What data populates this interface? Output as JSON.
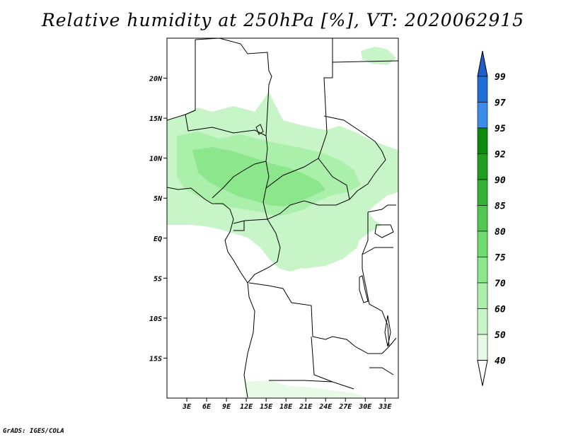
{
  "title": "Relative humidity at 250hPa [%], VT: 2020062915",
  "credit": "GrADS: IGES/COLA",
  "map": {
    "lon_range": [
      0,
      35
    ],
    "lat_range": [
      -20,
      25
    ],
    "lat_ticks": [
      {
        "value": 20,
        "label": "20N"
      },
      {
        "value": 15,
        "label": "15N"
      },
      {
        "value": 10,
        "label": "10N"
      },
      {
        "value": 5,
        "label": "5N"
      },
      {
        "value": 0,
        "label": "EQ"
      },
      {
        "value": -5,
        "label": "5S"
      },
      {
        "value": -10,
        "label": "10S"
      },
      {
        "value": -15,
        "label": "15S"
      }
    ],
    "lon_ticks": [
      {
        "value": 3,
        "label": "3E"
      },
      {
        "value": 6,
        "label": "6E"
      },
      {
        "value": 9,
        "label": "9E"
      },
      {
        "value": 12,
        "label": "12E"
      },
      {
        "value": 15,
        "label": "15E"
      },
      {
        "value": 18,
        "label": "18E"
      },
      {
        "value": 21,
        "label": "21E"
      },
      {
        "value": 24,
        "label": "24E"
      },
      {
        "value": 27,
        "label": "27E"
      },
      {
        "value": 30,
        "label": "30E"
      },
      {
        "value": 33,
        "label": "33E"
      }
    ]
  },
  "colorbar": {
    "levels": [
      {
        "label": "99",
        "color": "#1e6ed6"
      },
      {
        "label": "97",
        "color": "#3c8cec"
      },
      {
        "label": "95",
        "color": "#0a8c0a"
      },
      {
        "label": "92",
        "color": "#1ea01e"
      },
      {
        "label": "90",
        "color": "#32b432"
      },
      {
        "label": "85",
        "color": "#50c850"
      },
      {
        "label": "80",
        "color": "#6edc6e"
      },
      {
        "label": "75",
        "color": "#8ce68c"
      },
      {
        "label": "70",
        "color": "#aaf0aa"
      },
      {
        "label": "60",
        "color": "#c8f5c8"
      },
      {
        "label": "50",
        "color": "#e6fae6"
      },
      {
        "label": "40",
        "color": "#ffffff"
      }
    ],
    "top_arrow_color": "#1e5fc8",
    "bottom_arrow_color": "#ffffff"
  }
}
